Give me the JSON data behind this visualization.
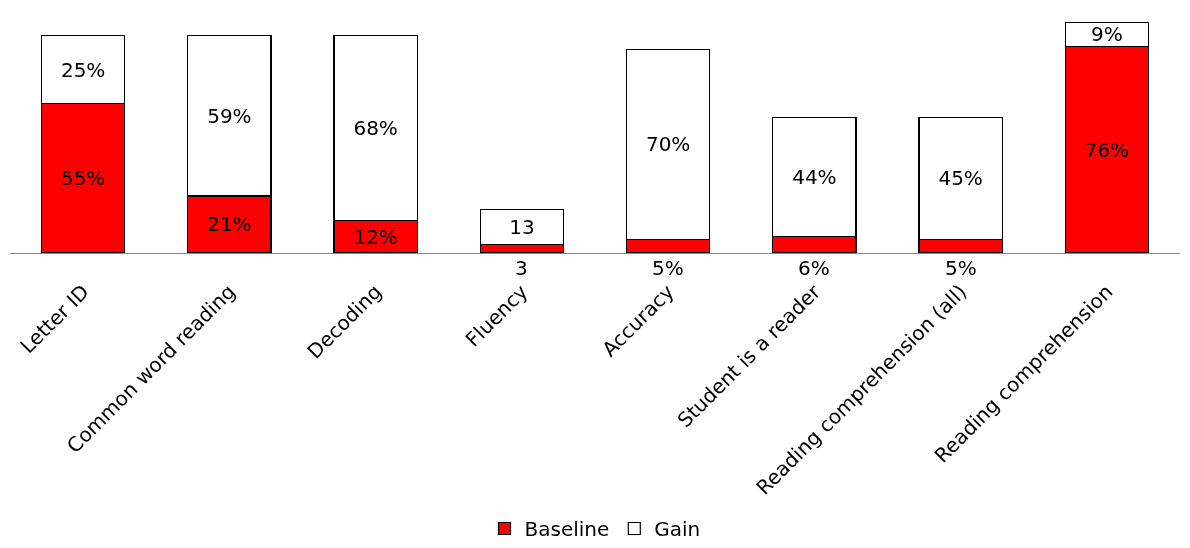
{
  "chart_data": {
    "type": "bar",
    "stacked": true,
    "categories": [
      "Letter ID",
      "Common word reading",
      "Decoding",
      "Fluency",
      "Accuracy",
      "Student is a reader",
      "Reading comprehension (all)",
      "Reading comprehension"
    ],
    "series": [
      {
        "name": "Baseline",
        "color": "#ff0000",
        "values": [
          55,
          21,
          12,
          3,
          5,
          6,
          5,
          76
        ],
        "value_labels": [
          "55%",
          "21%",
          "12%",
          "3",
          "5%",
          "6%",
          "5%",
          "76%"
        ]
      },
      {
        "name": "Gain",
        "color": "#ffffff",
        "values": [
          25,
          59,
          68,
          13,
          70,
          44,
          45,
          9
        ],
        "value_labels": [
          "25%",
          "59%",
          "68%",
          "13",
          "70%",
          "44%",
          "45%",
          "9%"
        ]
      }
    ],
    "legend": "bottom"
  }
}
